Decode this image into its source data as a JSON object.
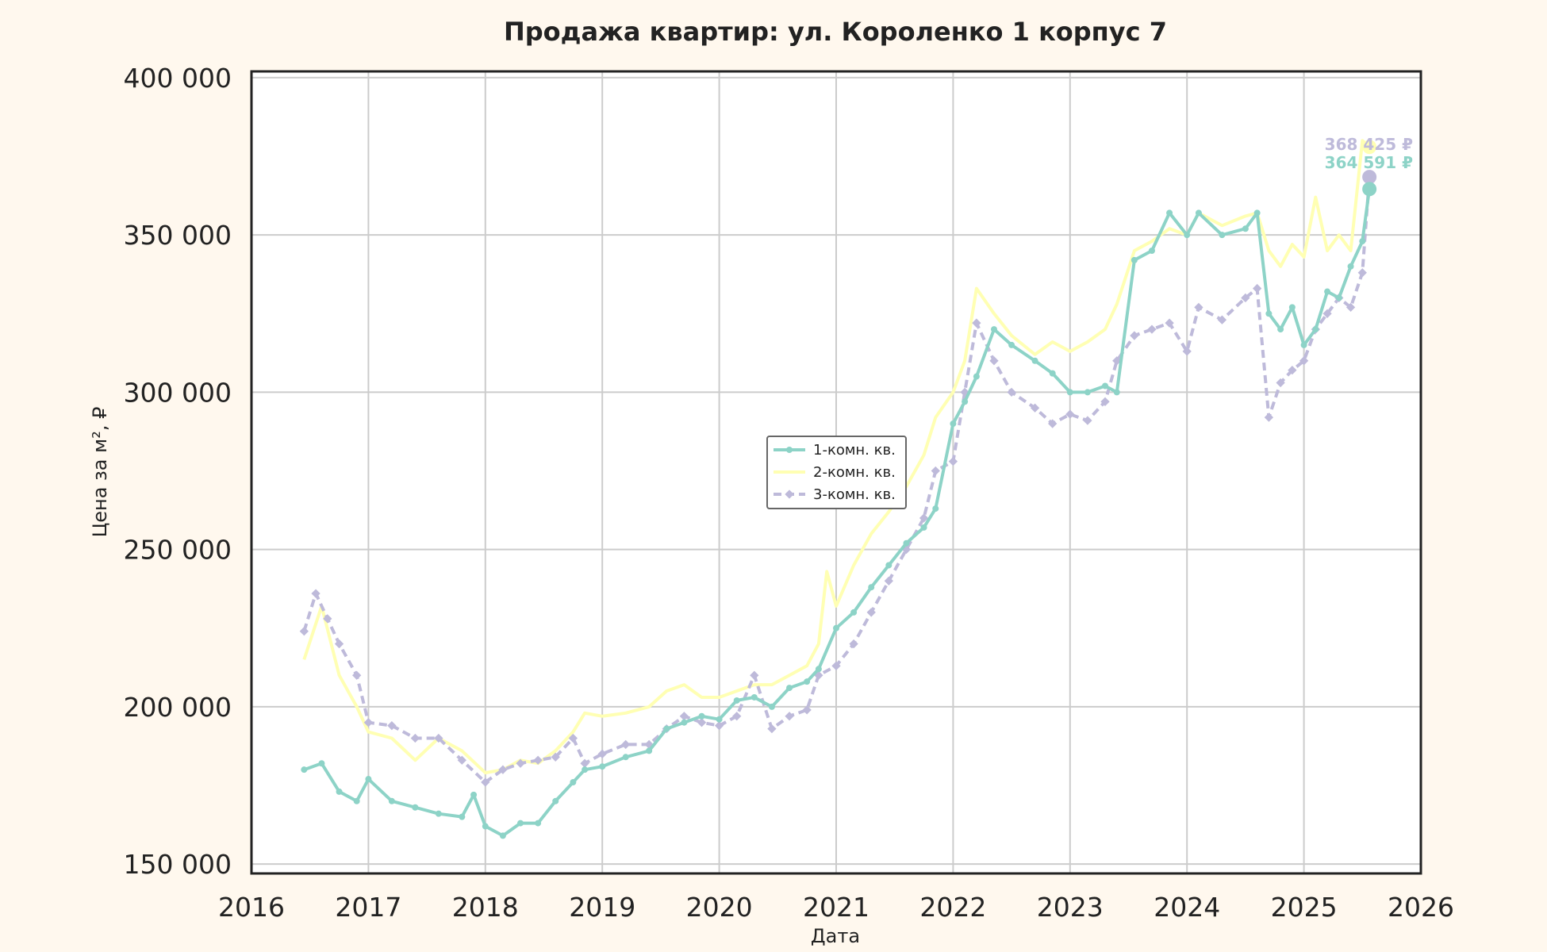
{
  "chart_data": {
    "type": "line",
    "title": "Продажа квартир: ул. Короленко 1 корпус 7",
    "xlabel": "Дата",
    "ylabel": "Цена за м², ₽",
    "xlim": [
      2016,
      2026
    ],
    "ylim": [
      147000,
      402000
    ],
    "x_ticks": [
      "2016",
      "2017",
      "2018",
      "2019",
      "2020",
      "2021",
      "2022",
      "2023",
      "2024",
      "2025",
      "2026"
    ],
    "y_ticks": [
      150000,
      200000,
      250000,
      300000,
      350000,
      400000
    ],
    "y_tick_labels": [
      "150 000",
      "200 000",
      "250 000",
      "300 000",
      "350 000",
      "400 000"
    ],
    "grid": true,
    "legend_position": "center",
    "colors": {
      "1": "#8dd3c7",
      "2": "#ffffb3",
      "3": "#bebada"
    },
    "series": [
      {
        "name": "1-комн. кв.",
        "style": "solid-marker",
        "x": [
          2016.45,
          2016.6,
          2016.75,
          2016.9,
          2017.0,
          2017.2,
          2017.4,
          2017.6,
          2017.8,
          2017.9,
          2018.0,
          2018.15,
          2018.3,
          2018.45,
          2018.6,
          2018.75,
          2018.85,
          2019.0,
          2019.2,
          2019.4,
          2019.55,
          2019.7,
          2019.85,
          2020.0,
          2020.15,
          2020.3,
          2020.45,
          2020.6,
          2020.75,
          2020.85,
          2021.0,
          2021.15,
          2021.3,
          2021.45,
          2021.6,
          2021.75,
          2021.85,
          2022.0,
          2022.1,
          2022.2,
          2022.35,
          2022.5,
          2022.7,
          2022.85,
          2023.0,
          2023.15,
          2023.3,
          2023.4,
          2023.55,
          2023.7,
          2023.85,
          2024.0,
          2024.1,
          2024.3,
          2024.5,
          2024.6,
          2024.7,
          2024.8,
          2024.9,
          2025.0,
          2025.1,
          2025.2,
          2025.3,
          2025.4,
          2025.5,
          2025.56
        ],
        "y": [
          180000,
          182000,
          173000,
          170000,
          177000,
          170000,
          168000,
          166000,
          165000,
          172000,
          162000,
          159000,
          163000,
          163000,
          170000,
          176000,
          180000,
          181000,
          184000,
          186000,
          193000,
          195000,
          197000,
          196000,
          202000,
          203000,
          200000,
          206000,
          208000,
          212000,
          225000,
          230000,
          238000,
          245000,
          252000,
          257000,
          263000,
          290000,
          297000,
          305000,
          320000,
          315000,
          310000,
          306000,
          300000,
          300000,
          302000,
          300000,
          342000,
          345000,
          357000,
          350000,
          357000,
          350000,
          352000,
          357000,
          325000,
          320000,
          327000,
          315000,
          320000,
          332000,
          330000,
          340000,
          348000,
          364591
        ]
      },
      {
        "name": "2-комн. кв.",
        "style": "solid",
        "x": [
          2016.45,
          2016.6,
          2016.75,
          2016.9,
          2017.0,
          2017.2,
          2017.4,
          2017.6,
          2017.8,
          2018.0,
          2018.15,
          2018.3,
          2018.45,
          2018.6,
          2018.75,
          2018.85,
          2019.0,
          2019.2,
          2019.4,
          2019.55,
          2019.7,
          2019.85,
          2020.0,
          2020.15,
          2020.3,
          2020.45,
          2020.6,
          2020.75,
          2020.85,
          2020.92,
          2021.0,
          2021.15,
          2021.3,
          2021.45,
          2021.6,
          2021.75,
          2021.85,
          2022.0,
          2022.1,
          2022.2,
          2022.35,
          2022.5,
          2022.7,
          2022.85,
          2023.0,
          2023.15,
          2023.3,
          2023.4,
          2023.55,
          2023.7,
          2023.85,
          2024.0,
          2024.1,
          2024.3,
          2024.5,
          2024.6,
          2024.7,
          2024.8,
          2024.9,
          2025.0,
          2025.1,
          2025.2,
          2025.3,
          2025.4,
          2025.5,
          2025.56
        ],
        "y": [
          215000,
          232000,
          210000,
          200000,
          192000,
          190000,
          183000,
          190000,
          186000,
          179000,
          180000,
          183000,
          182000,
          186000,
          192000,
          198000,
          197000,
          198000,
          200000,
          205000,
          207000,
          203000,
          203000,
          205000,
          207000,
          207000,
          210000,
          213000,
          220000,
          243000,
          232000,
          245000,
          255000,
          262000,
          270000,
          280000,
          292000,
          300000,
          310000,
          333000,
          325000,
          318000,
          312000,
          316000,
          313000,
          316000,
          320000,
          328000,
          345000,
          348000,
          352000,
          350000,
          357000,
          353000,
          356000,
          357000,
          345000,
          340000,
          347000,
          343000,
          362000,
          345000,
          350000,
          345000,
          380000,
          378000
        ]
      },
      {
        "name": "3-комн. кв.",
        "style": "dashed-marker",
        "x": [
          2016.45,
          2016.55,
          2016.65,
          2016.75,
          2016.9,
          2017.0,
          2017.2,
          2017.4,
          2017.6,
          2017.8,
          2018.0,
          2018.15,
          2018.3,
          2018.45,
          2018.6,
          2018.75,
          2018.85,
          2019.0,
          2019.2,
          2019.4,
          2019.55,
          2019.7,
          2019.85,
          2020.0,
          2020.15,
          2020.3,
          2020.45,
          2020.6,
          2020.75,
          2020.85,
          2021.0,
          2021.15,
          2021.3,
          2021.45,
          2021.6,
          2021.75,
          2021.85,
          2022.0,
          2022.1,
          2022.2,
          2022.35,
          2022.5,
          2022.7,
          2022.85,
          2023.0,
          2023.15,
          2023.3,
          2023.4,
          2023.55,
          2023.7,
          2023.85,
          2024.0,
          2024.1,
          2024.3,
          2024.5,
          2024.6,
          2024.7,
          2024.8,
          2024.9,
          2025.0,
          2025.1,
          2025.2,
          2025.3,
          2025.4,
          2025.5,
          2025.56
        ],
        "y": [
          224000,
          236000,
          228000,
          220000,
          210000,
          195000,
          194000,
          190000,
          190000,
          183000,
          176000,
          180000,
          182000,
          183000,
          184000,
          190000,
          182000,
          185000,
          188000,
          188000,
          193000,
          197000,
          195000,
          194000,
          197000,
          210000,
          193000,
          197000,
          199000,
          210000,
          213000,
          220000,
          230000,
          240000,
          250000,
          260000,
          275000,
          278000,
          300000,
          322000,
          310000,
          300000,
          295000,
          290000,
          293000,
          291000,
          297000,
          310000,
          318000,
          320000,
          322000,
          313000,
          327000,
          323000,
          330000,
          333000,
          292000,
          303000,
          307000,
          310000,
          320000,
          325000,
          330000,
          327000,
          338000,
          368425
        ]
      }
    ],
    "annotations": [
      {
        "text": "368 425 ₽",
        "series": "3-комн. кв.",
        "x": 2025.56,
        "y": 368425
      },
      {
        "text": "364 591 ₽",
        "series": "1-комн. кв.",
        "x": 2025.56,
        "y": 364591
      }
    ]
  }
}
